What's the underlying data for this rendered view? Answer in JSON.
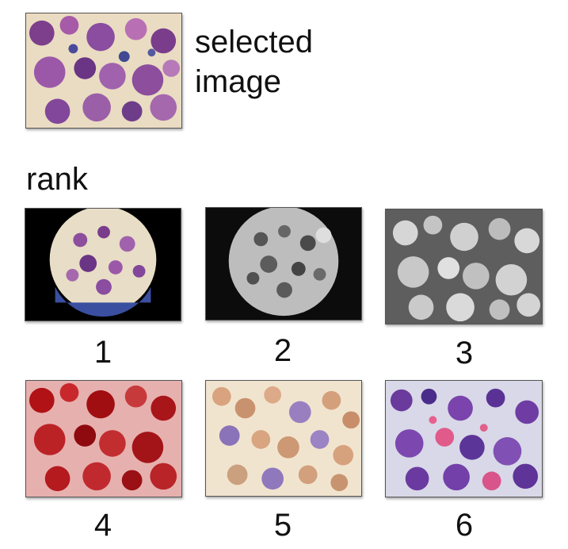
{
  "selected": {
    "caption_line1": "selected",
    "caption_line2": "image",
    "style": "purple-stain"
  },
  "rank_label": "rank",
  "results": [
    {
      "rank": "1",
      "style": "circular-field-color"
    },
    {
      "rank": "2",
      "style": "circular-field-grayscale"
    },
    {
      "rank": "3",
      "style": "inverted-grayscale"
    },
    {
      "rank": "4",
      "style": "red-tint"
    },
    {
      "rank": "5",
      "style": "pale-orange-stain"
    },
    {
      "rank": "6",
      "style": "dense-purple-stain"
    }
  ]
}
